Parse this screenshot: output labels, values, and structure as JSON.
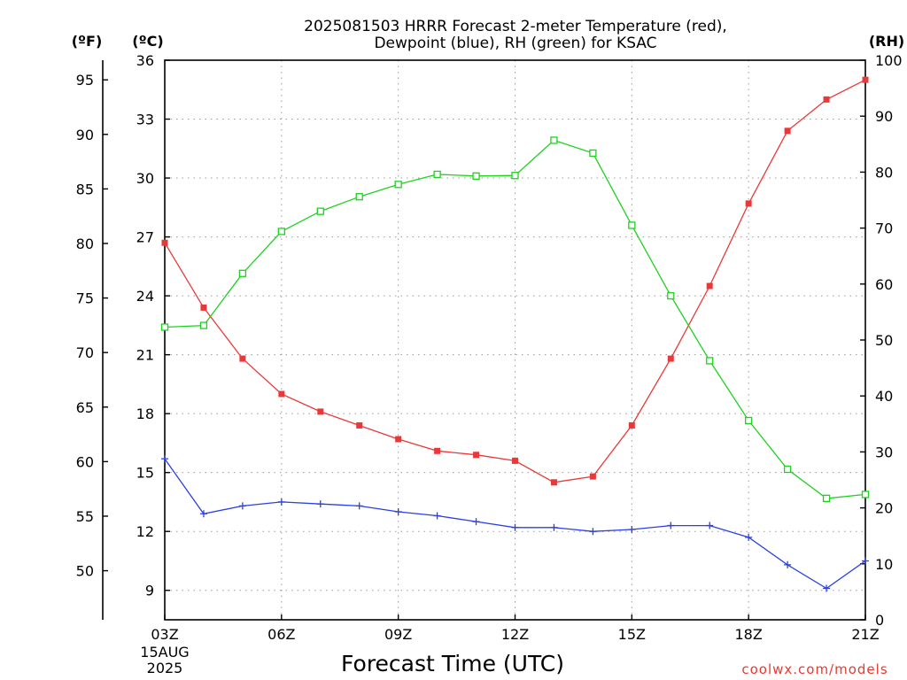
{
  "title": {
    "line1": "2025081503 HRRR Forecast 2-meter Temperature (red),",
    "line2": "Dewpoint (blue), RH (green) for KSAC"
  },
  "unit_labels": {
    "fahrenheit": "(ºF)",
    "celsius": "(ºC)",
    "rh": "(RH)"
  },
  "xlabel": "Forecast Time (UTC)",
  "credit": "coolwx.com/models",
  "x_first_label": {
    "time": "03Z",
    "date": "15AUG",
    "year": "2025"
  },
  "colors": {
    "temperature": "#e8393a",
    "dewpoint": "#2b3fe6",
    "rh": "#1fd21f"
  },
  "chart_data": {
    "type": "line",
    "title": "2025081503 HRRR Forecast 2-meter Temperature (red), Dewpoint (blue), RH (green) for KSAC",
    "xlabel": "Forecast Time (UTC)",
    "x": [
      "03Z",
      "04Z",
      "05Z",
      "06Z",
      "07Z",
      "08Z",
      "09Z",
      "10Z",
      "11Z",
      "12Z",
      "13Z",
      "14Z",
      "15Z",
      "16Z",
      "17Z",
      "18Z",
      "19Z",
      "20Z",
      "21Z"
    ],
    "x_tick_labels": [
      "03Z",
      "06Z",
      "09Z",
      "12Z",
      "15Z",
      "18Z",
      "21Z"
    ],
    "x_tick_index": [
      0,
      3,
      6,
      9,
      12,
      15,
      18
    ],
    "axes": {
      "celsius": {
        "ylim": [
          7.5,
          36
        ],
        "ticks": [
          9,
          12,
          15,
          18,
          21,
          24,
          27,
          30,
          33,
          36
        ]
      },
      "fahrenheit": {
        "ticks": [
          50,
          55,
          60,
          65,
          70,
          75,
          80,
          85,
          90,
          95
        ]
      },
      "rh": {
        "ylim": [
          0,
          100
        ],
        "ticks": [
          0,
          10,
          20,
          30,
          40,
          50,
          60,
          70,
          80,
          90,
          100
        ]
      }
    },
    "grid": true,
    "series": [
      {
        "name": "Temperature",
        "axis": "celsius",
        "marker": "filled-square",
        "values": [
          26.7,
          23.4,
          20.8,
          19.0,
          18.1,
          17.4,
          16.7,
          16.1,
          15.9,
          15.6,
          14.5,
          14.8,
          17.4,
          20.8,
          24.5,
          28.7,
          32.4,
          34.0,
          35.0
        ]
      },
      {
        "name": "Dewpoint",
        "axis": "celsius",
        "marker": "plus",
        "values": [
          15.7,
          12.9,
          13.3,
          13.5,
          13.4,
          13.3,
          13.0,
          12.8,
          12.5,
          12.2,
          12.2,
          12.0,
          12.1,
          12.3,
          12.3,
          11.7,
          10.3,
          9.1,
          10.5
        ]
      },
      {
        "name": "RH",
        "axis": "rh",
        "marker": "open-square",
        "values": [
          52.3,
          52.6,
          61.9,
          69.4,
          73.0,
          75.6,
          77.8,
          79.6,
          79.3,
          79.4,
          85.7,
          83.4,
          70.5,
          57.9,
          46.3,
          35.6,
          26.9,
          21.7,
          22.4
        ]
      }
    ]
  }
}
